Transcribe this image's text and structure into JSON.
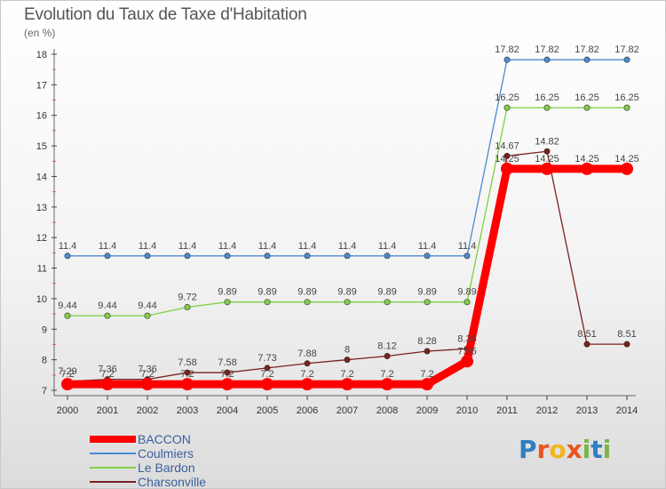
{
  "title": "Evolution du Taux de Taxe d'Habitation",
  "subtitle": "(en %)",
  "logo": {
    "text": "Proxiti",
    "letters": [
      "P",
      "r",
      "o",
      "x",
      "i",
      "t",
      "i"
    ],
    "colors": [
      "#2f7fc1",
      "#e8531f",
      "#f3b51c",
      "#e8531f",
      "#7ab648",
      "#2f7fc1",
      "#7ab648"
    ]
  },
  "chart_data": {
    "type": "line",
    "title": "Evolution du Taux de Taxe d'Habitation",
    "ylabel": "(en %)",
    "xlabel": "",
    "x": [
      "2000",
      "2001",
      "2002",
      "2003",
      "2004",
      "2005",
      "2006",
      "2007",
      "2008",
      "2009",
      "2010",
      "2011",
      "2012",
      "2013",
      "2014"
    ],
    "ylim": [
      7,
      18
    ],
    "yticks": [
      7,
      8,
      9,
      10,
      11,
      12,
      13,
      14,
      15,
      16,
      17,
      18
    ],
    "grid": false,
    "legend": "bottom-left",
    "series": [
      {
        "name": "BACCON",
        "color": "#ff0000",
        "values": [
          7.2,
          7.2,
          7.2,
          7.2,
          7.2,
          7.2,
          7.2,
          7.2,
          7.2,
          7.2,
          7.95,
          14.25,
          14.25,
          14.25,
          14.25
        ],
        "labels": [
          "7.2",
          "7.2",
          "7.2",
          "7.2",
          "7.2",
          "7.2",
          "7.2",
          "7.2",
          "7.2",
          "7.2",
          "7.95",
          "14.25",
          "14.25",
          "14.25",
          "14.25"
        ]
      },
      {
        "name": "Coulmiers",
        "color": "#4a8ad0",
        "values": [
          11.4,
          11.4,
          11.4,
          11.4,
          11.4,
          11.4,
          11.4,
          11.4,
          11.4,
          11.4,
          11.4,
          17.82,
          17.82,
          17.82,
          17.82
        ],
        "labels": [
          "11.4",
          "11.4",
          "11.4",
          "11.4",
          "11.4",
          "11.4",
          "11.4",
          "11.4",
          "11.4",
          "11.4",
          "11.4",
          "17.82",
          "17.82",
          "17.82",
          "17.82"
        ]
      },
      {
        "name": "Le Bardon",
        "color": "#80d040",
        "values": [
          9.44,
          9.44,
          9.44,
          9.72,
          9.89,
          9.89,
          9.89,
          9.89,
          9.89,
          9.89,
          9.89,
          16.25,
          16.25,
          16.25,
          16.25
        ],
        "labels": [
          "9.44",
          "9.44",
          "9.44",
          "9.72",
          "9.89",
          "9.89",
          "9.89",
          "9.89",
          "9.89",
          "9.89",
          "9.89",
          "16.25",
          "16.25",
          "16.25",
          "16.25"
        ]
      },
      {
        "name": "Charsonville",
        "color": "#7a2020",
        "values": [
          7.29,
          7.36,
          7.36,
          7.58,
          7.58,
          7.73,
          7.88,
          8.0,
          8.12,
          8.28,
          8.36,
          14.67,
          14.82,
          8.51,
          8.51
        ],
        "labels": [
          "7.29",
          "7.36",
          "7.36",
          "7.58",
          "7.58",
          "7.73",
          "7.88",
          "8",
          "8.12",
          "8.28",
          "8.36",
          "14.67",
          "14.82",
          "8.51",
          "8.51"
        ]
      }
    ]
  }
}
